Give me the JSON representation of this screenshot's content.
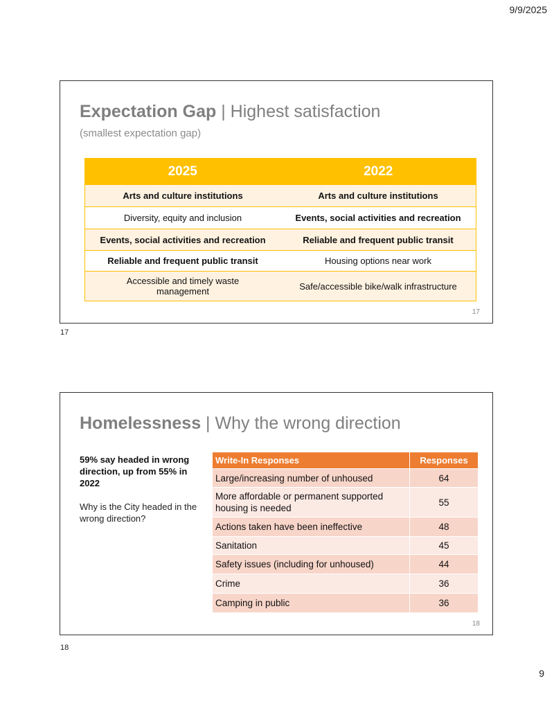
{
  "header": {
    "date": "9/9/2025"
  },
  "footer": {
    "page_number": "9"
  },
  "slide17": {
    "title_bold": "Expectation Gap",
    "title_sep": " | ",
    "title_rest": "Highest satisfaction",
    "subtitle": "(smallest expectation gap)",
    "columns": [
      "2025",
      "2022"
    ],
    "rows": [
      [
        "Arts and culture institutions",
        "Arts and culture institutions"
      ],
      [
        "Diversity, equity and inclusion",
        "Events, social activities and recreation"
      ],
      [
        "Events, social activities and recreation",
        "Reliable and frequent public transit"
      ],
      [
        "Reliable and frequent public transit",
        "Housing options near work"
      ],
      [
        "Accessible and timely waste management",
        "Safe/accessible bike/walk infrastructure"
      ]
    ],
    "slide_number": "17",
    "handout_label": "17"
  },
  "slide18": {
    "title_bold": "Homelessness",
    "title_sep": " | ",
    "title_rest": "Why the wrong direction",
    "stat": "59% say headed in wrong direction, up from 55% in 2022",
    "question": "Why is the City headed in the wrong direction?",
    "columns": [
      "Write-In Responses",
      "Responses"
    ],
    "rows": [
      [
        "Large/increasing number of unhoused",
        "64"
      ],
      [
        "More affordable or permanent supported housing is needed",
        "55"
      ],
      [
        "Actions taken have been ineffective",
        "48"
      ],
      [
        "Sanitation",
        "45"
      ],
      [
        "Safety issues (including for unhoused)",
        "44"
      ],
      [
        "Crime",
        "36"
      ],
      [
        "Camping in public",
        "36"
      ]
    ],
    "slide_number": "18",
    "handout_label": "18"
  }
}
